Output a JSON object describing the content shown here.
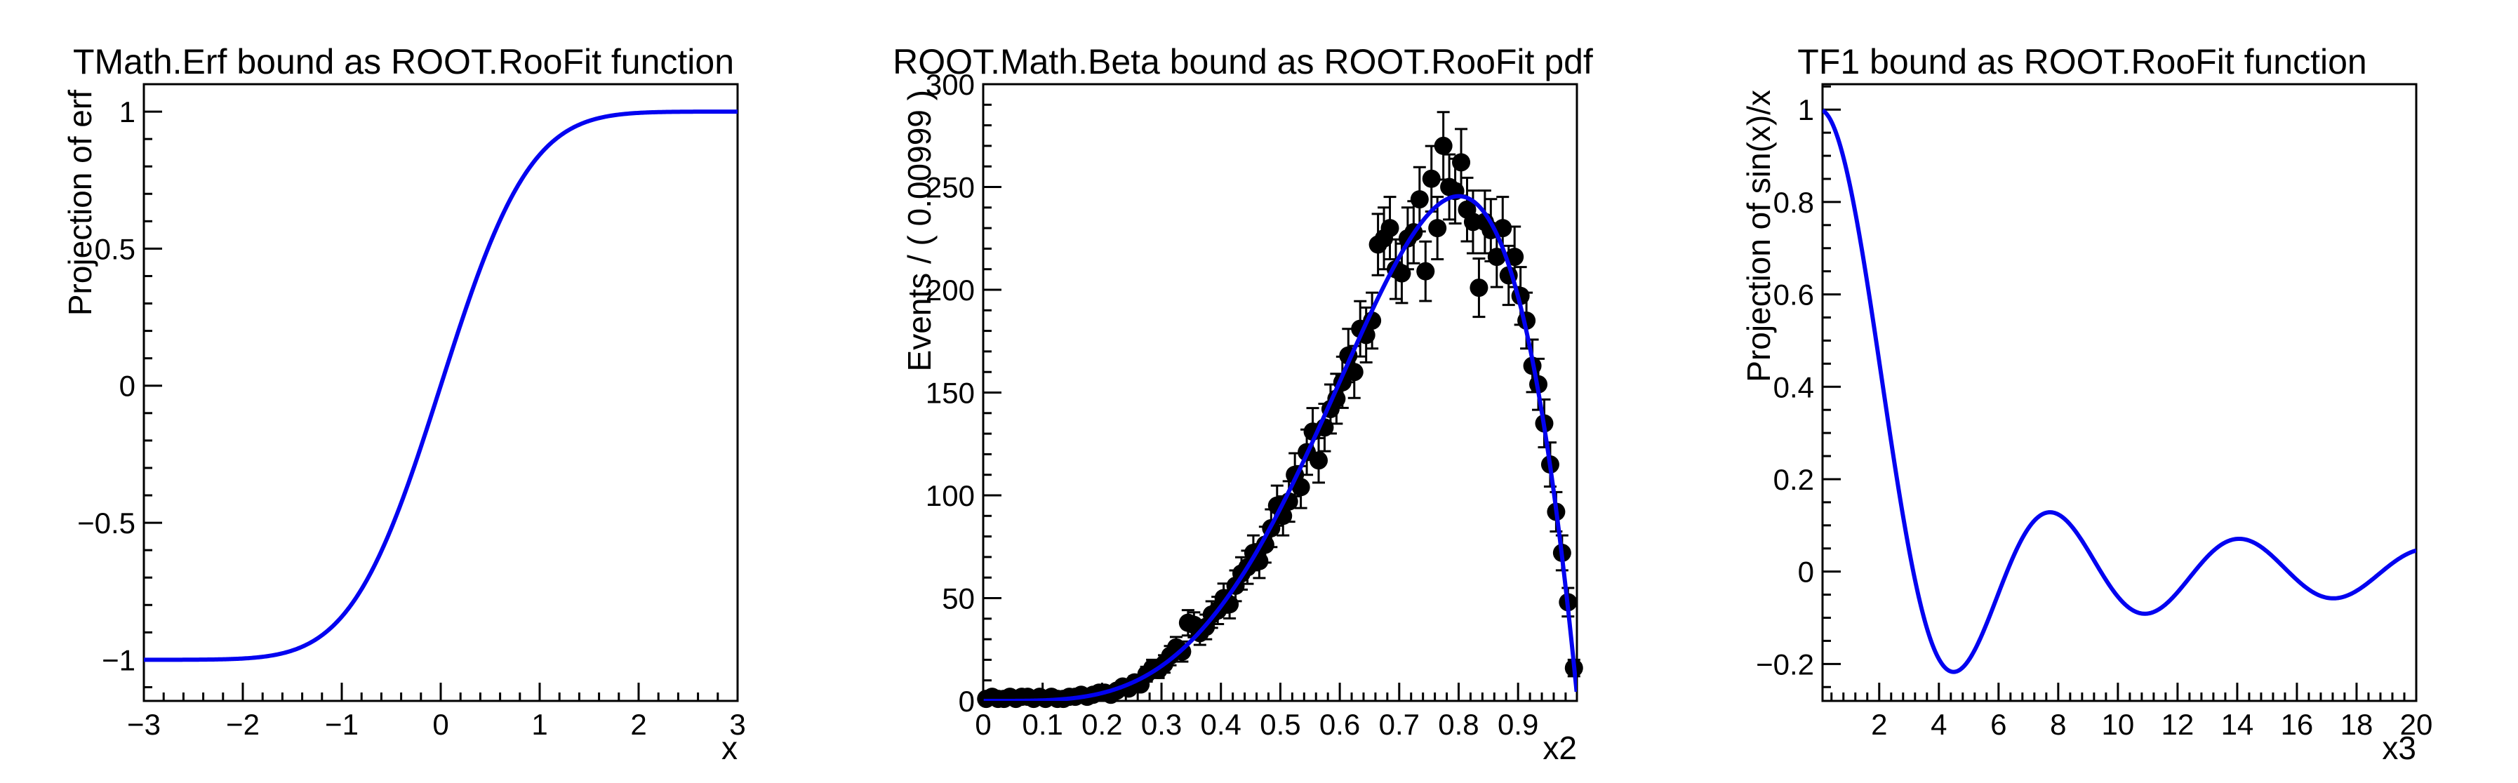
{
  "canvas": {
    "background": "#ffffff",
    "frame_color": "#000000"
  },
  "colors": {
    "curve_blue": "#0303f0",
    "marker_black": "#000000"
  },
  "chart_data": [
    {
      "type": "line",
      "title": "TMath.Erf bound as ROOT.RooFit function",
      "xlabel": "x",
      "ylabel": "Projection of erf",
      "xlim": [
        -3,
        3
      ],
      "ylim": [
        -1.15,
        1.1
      ],
      "x_ticks": {
        "majors": [
          -3,
          -2,
          -1,
          0,
          1,
          2,
          3
        ],
        "labels": [
          "−3",
          "−2",
          "−1",
          "0",
          "1",
          "2",
          "3"
        ],
        "minor_step": 0.2
      },
      "y_ticks": {
        "majors": [
          -1,
          -0.5,
          0,
          0.5,
          1
        ],
        "labels": [
          "−1",
          "−0.5",
          "0",
          "0.5",
          "1"
        ],
        "minor_step": 0.1
      },
      "grid": false,
      "legend": "none",
      "curve": {
        "fn": "erf",
        "formula": "erf(x)",
        "range": [
          -3,
          3
        ],
        "color": "#0303f0",
        "width": 6
      }
    },
    {
      "type": "scatter",
      "title": "ROOT.Math.Beta bound as ROOT.RooFit pdf",
      "xlabel": "x2",
      "ylabel": "Events / ( 0.00999 )",
      "xlim": [
        0,
        0.999
      ],
      "ylim": [
        0,
        300
      ],
      "x_ticks": {
        "majors": [
          0,
          0.1,
          0.2,
          0.3,
          0.4,
          0.5,
          0.6,
          0.7,
          0.8,
          0.9
        ],
        "labels": [
          "0",
          "0.1",
          "0.2",
          "0.3",
          "0.4",
          "0.5",
          "0.6",
          "0.7",
          "0.8",
          "0.9"
        ],
        "minor_step": 0.02
      },
      "y_ticks": {
        "majors": [
          0,
          50,
          100,
          150,
          200,
          250,
          300
        ],
        "labels": [
          "0",
          "50",
          "100",
          "150",
          "200",
          "250",
          "300"
        ],
        "minor_step": 10
      },
      "grid": false,
      "legend": "none",
      "points": {
        "x_start": 0.005,
        "x_step": 0.00999,
        "values": [
          1,
          2,
          1,
          1,
          2,
          1,
          2,
          2,
          1,
          2,
          1,
          2,
          1,
          1,
          2,
          2,
          3,
          2,
          3,
          4,
          4,
          3,
          5,
          7,
          6,
          9,
          8,
          13,
          16,
          15,
          18,
          22,
          26,
          24,
          38,
          37,
          33,
          36,
          42,
          44,
          50,
          47,
          56,
          62,
          65,
          72,
          68,
          76,
          84,
          95,
          90,
          97,
          110,
          104,
          121,
          131,
          117,
          133,
          142,
          147,
          155,
          168,
          160,
          181,
          178,
          185,
          222,
          225,
          230,
          210,
          208,
          225,
          228,
          244,
          209,
          254,
          230,
          270,
          250,
          248,
          262,
          239,
          233,
          201,
          233,
          229,
          216,
          230,
          207,
          216,
          197,
          185,
          163,
          154,
          135,
          115,
          92,
          72,
          48,
          16
        ],
        "errors": "poisson-sqrt",
        "color": "#000000",
        "marker_radius": 13
      },
      "fit_curve": {
        "fn": "beta_pdf_scaled",
        "formula": "2997 * x^4 * (1-x)",
        "coef": 2997,
        "range": [
          0.0008,
          0.9985
        ],
        "color": "#0303f0",
        "width": 6
      }
    },
    {
      "type": "line",
      "title": "TF1 bound as ROOT.RooFit function",
      "xlabel": "x3",
      "ylabel": "Projection of sin(x)/x",
      "xlim": [
        0.1,
        20
      ],
      "ylim": [
        -0.28,
        1.055
      ],
      "x_ticks": {
        "majors": [
          2,
          4,
          6,
          8,
          10,
          12,
          14,
          16,
          18,
          20
        ],
        "labels": [
          "2",
          "4",
          "6",
          "8",
          "10",
          "12",
          "14",
          "16",
          "18",
          "20"
        ],
        "minor_step": 0.4
      },
      "y_ticks": {
        "majors": [
          -0.2,
          0,
          0.2,
          0.4,
          0.6,
          0.8,
          1
        ],
        "labels": [
          "−0.2",
          "0",
          "0.2",
          "0.4",
          "0.6",
          "0.8",
          "1"
        ],
        "minor_step": 0.05
      },
      "grid": false,
      "legend": "none",
      "curve": {
        "fn": "sinc",
        "formula": "sin(x)/x",
        "range": [
          0.1,
          20
        ],
        "color": "#0303f0",
        "width": 6
      }
    }
  ]
}
